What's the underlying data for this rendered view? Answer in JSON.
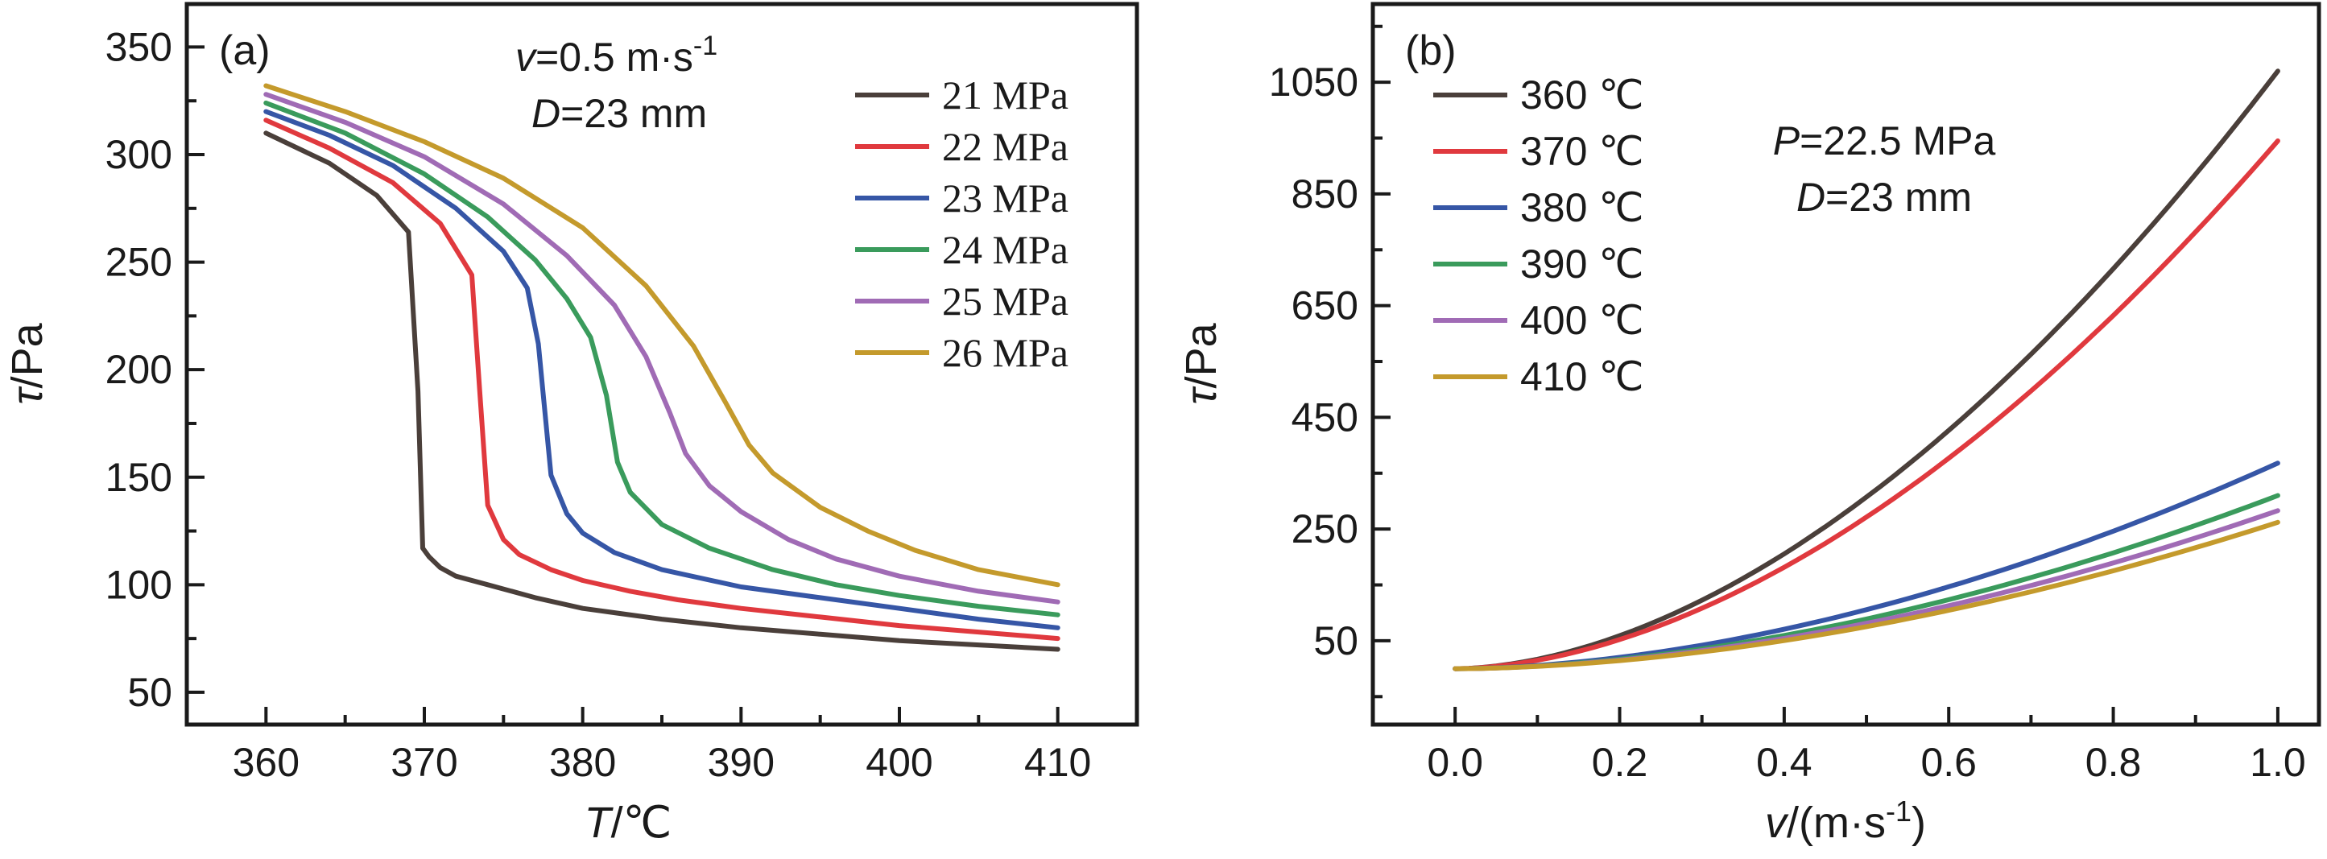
{
  "chart_data": [
    {
      "type": "line",
      "panel_tag": "(a)",
      "xlabel_var": "T",
      "xlabel_unit": "/℃",
      "ylabel_var": "τ",
      "ylabel_unit": "/Pa",
      "xlim": [
        355,
        415
      ],
      "ylim": [
        35,
        370
      ],
      "xticks": [
        360,
        370,
        380,
        390,
        400,
        410
      ],
      "yticks": [
        50,
        100,
        150,
        200,
        250,
        300,
        350
      ],
      "annotation_line1_var": "v",
      "annotation_line1_rest": "=0.5 m·s",
      "annotation_line1_sup": "-1",
      "annotation_line2_var": "D",
      "annotation_line2_rest": "=23 mm",
      "legend_position": "top-right",
      "series": [
        {
          "name": "21 MPa",
          "color": "#4a3f3a",
          "x": [
            360,
            364,
            367,
            369,
            369.6,
            369.9,
            370.3,
            371,
            372,
            374,
            377,
            380,
            385,
            390,
            395,
            400,
            405,
            410
          ],
          "y": [
            310,
            296,
            281,
            264,
            190,
            117,
            113,
            108,
            104,
            100,
            94,
            89,
            84,
            80,
            77,
            74,
            72,
            70
          ]
        },
        {
          "name": "22 MPa",
          "color": "#e0393e",
          "x": [
            360,
            364,
            368,
            371,
            373,
            373.5,
            374,
            375,
            376,
            378,
            380,
            383,
            386,
            390,
            395,
            400,
            405,
            410
          ],
          "y": [
            316,
            303,
            287,
            268,
            244,
            190,
            137,
            121,
            114,
            107,
            102,
            97,
            93,
            89,
            85,
            81,
            78,
            75
          ]
        },
        {
          "name": "23 MPa",
          "color": "#3656a6",
          "x": [
            360,
            364,
            368,
            372,
            375,
            376.5,
            377.2,
            378,
            379,
            380,
            382,
            385,
            390,
            395,
            400,
            405,
            410
          ],
          "y": [
            320,
            309,
            295,
            275,
            255,
            238,
            212,
            151,
            133,
            124,
            115,
            107,
            99,
            94,
            89,
            84,
            80
          ]
        },
        {
          "name": "24 MPa",
          "color": "#3a9b5c",
          "x": [
            360,
            365,
            370,
            374,
            377,
            379,
            380.5,
            381.5,
            382.2,
            383,
            385,
            388,
            392,
            396,
            400,
            405,
            410
          ],
          "y": [
            324,
            310,
            291,
            271,
            251,
            233,
            215,
            188,
            157,
            143,
            128,
            117,
            107,
            100,
            95,
            90,
            86
          ]
        },
        {
          "name": "25 MPa",
          "color": "#a06bb5",
          "x": [
            360,
            365,
            370,
            375,
            379,
            382,
            384,
            385.5,
            386.5,
            388,
            390,
            393,
            396,
            400,
            405,
            410
          ],
          "y": [
            328,
            315,
            299,
            277,
            253,
            230,
            206,
            180,
            161,
            146,
            134,
            121,
            112,
            104,
            97,
            92
          ]
        },
        {
          "name": "26 MPa",
          "color": "#c49a2c",
          "x": [
            360,
            365,
            370,
            375,
            380,
            384,
            387,
            389,
            390.5,
            392,
            395,
            398,
            401,
            405,
            410
          ],
          "y": [
            332,
            320,
            306,
            289,
            266,
            239,
            211,
            185,
            165,
            152,
            136,
            125,
            116,
            107,
            100
          ]
        }
      ]
    },
    {
      "type": "line",
      "panel_tag": "(b)",
      "xlabel_var": "v",
      "xlabel_unit": "/(m·s",
      "xlabel_sup": "-1",
      "xlabel_close": ")",
      "ylabel_var": "τ",
      "ylabel_unit": "/Pa",
      "xlim": [
        -0.1,
        1.05
      ],
      "ylim": [
        -100,
        1190
      ],
      "xticks": [
        "0.0",
        "0.2",
        "0.4",
        "0.6",
        "0.8",
        "1.0"
      ],
      "yticks": [
        50,
        250,
        450,
        650,
        850,
        1050
      ],
      "annotation_line1_var": "P",
      "annotation_line1_rest": "=22.5 MPa",
      "annotation_line2_var": "D",
      "annotation_line2_rest": "=23 mm",
      "legend_position": "top-left",
      "series": [
        {
          "name": "360 ℃",
          "color": "#4a3f3a",
          "end": 1070
        },
        {
          "name": "370 ℃",
          "color": "#e0393e",
          "end": 945
        },
        {
          "name": "380 ℃",
          "color": "#3656a6",
          "end": 368
        },
        {
          "name": "390 ℃",
          "color": "#3a9b5c",
          "end": 310
        },
        {
          "name": "400 ℃",
          "color": "#a06bb5",
          "end": 283
        },
        {
          "name": "410 ℃",
          "color": "#c49a2c",
          "end": 262
        }
      ],
      "curve_origin": 0,
      "start_value": 0
    }
  ]
}
